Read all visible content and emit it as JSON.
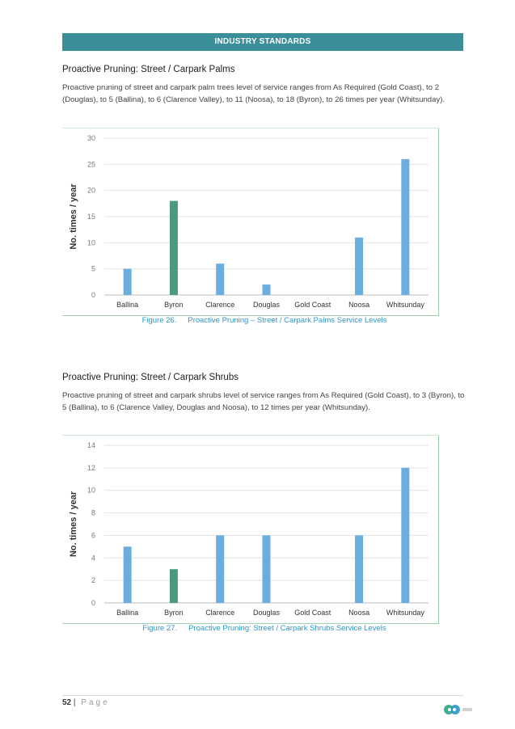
{
  "header": {
    "banner": "INDUSTRY STANDARDS"
  },
  "section1": {
    "heading": "Proactive Pruning: Street / Carpark Palms",
    "paragraph": "Proactive pruning of street and carpark palm trees level of service ranges from As Required (Gold Coast), to 2 (Douglas), to 5 (Ballina), to 6 (Clarence Valley), to 11 (Noosa), to 18 (Byron), to 26 times per year (Whitsunday).",
    "caption_num": "Figure 26.",
    "caption_text": "Proactive Pruning – Street / Carpark Palms Service Levels"
  },
  "section2": {
    "heading": "Proactive Pruning: Street / Carpark Shrubs",
    "paragraph": "Proactive pruning of street and carpark shrubs level of service ranges from As Required (Gold Coast), to 3 (Byron), to 5 (Ballina), to 6 (Clarence Valley, Douglas and Noosa), to 12 times per year (Whitsunday).",
    "caption_num": "Figure 27.",
    "caption_text": "Proactive Pruning: Street / Carpark Shrubs Service Levels"
  },
  "chart_data": [
    {
      "type": "bar",
      "categories": [
        "Ballina",
        "Byron",
        "Clarence",
        "Douglas",
        "Gold Coast",
        "Noosa",
        "Whitsunday"
      ],
      "values": [
        5,
        18,
        6,
        2,
        0,
        11,
        26
      ],
      "highlight_index": 1,
      "ylabel": "No. times / year",
      "ylim": [
        0,
        30
      ],
      "yticks": [
        0,
        5,
        10,
        15,
        20,
        25,
        30
      ],
      "grid": true,
      "colors": {
        "bar": "#6aaee0",
        "highlight": "#4b9a7e"
      }
    },
    {
      "type": "bar",
      "categories": [
        "Ballina",
        "Byron",
        "Clarence",
        "Douglas",
        "Gold Coast",
        "Noosa",
        "Whitsunday"
      ],
      "values": [
        5,
        3,
        6,
        6,
        0,
        6,
        12
      ],
      "highlight_index": 1,
      "ylabel": "No. times / year",
      "ylim": [
        0,
        14
      ],
      "yticks": [
        0,
        2,
        4,
        6,
        8,
        10,
        12,
        14
      ],
      "grid": true,
      "colors": {
        "bar": "#6aaee0",
        "highlight": "#4b9a7e"
      }
    }
  ],
  "footer": {
    "page_number": "52",
    "separator": "|",
    "page_word": "Page"
  },
  "logo": {
    "colors": [
      "#3fae8e",
      "#2e96c8"
    ]
  }
}
